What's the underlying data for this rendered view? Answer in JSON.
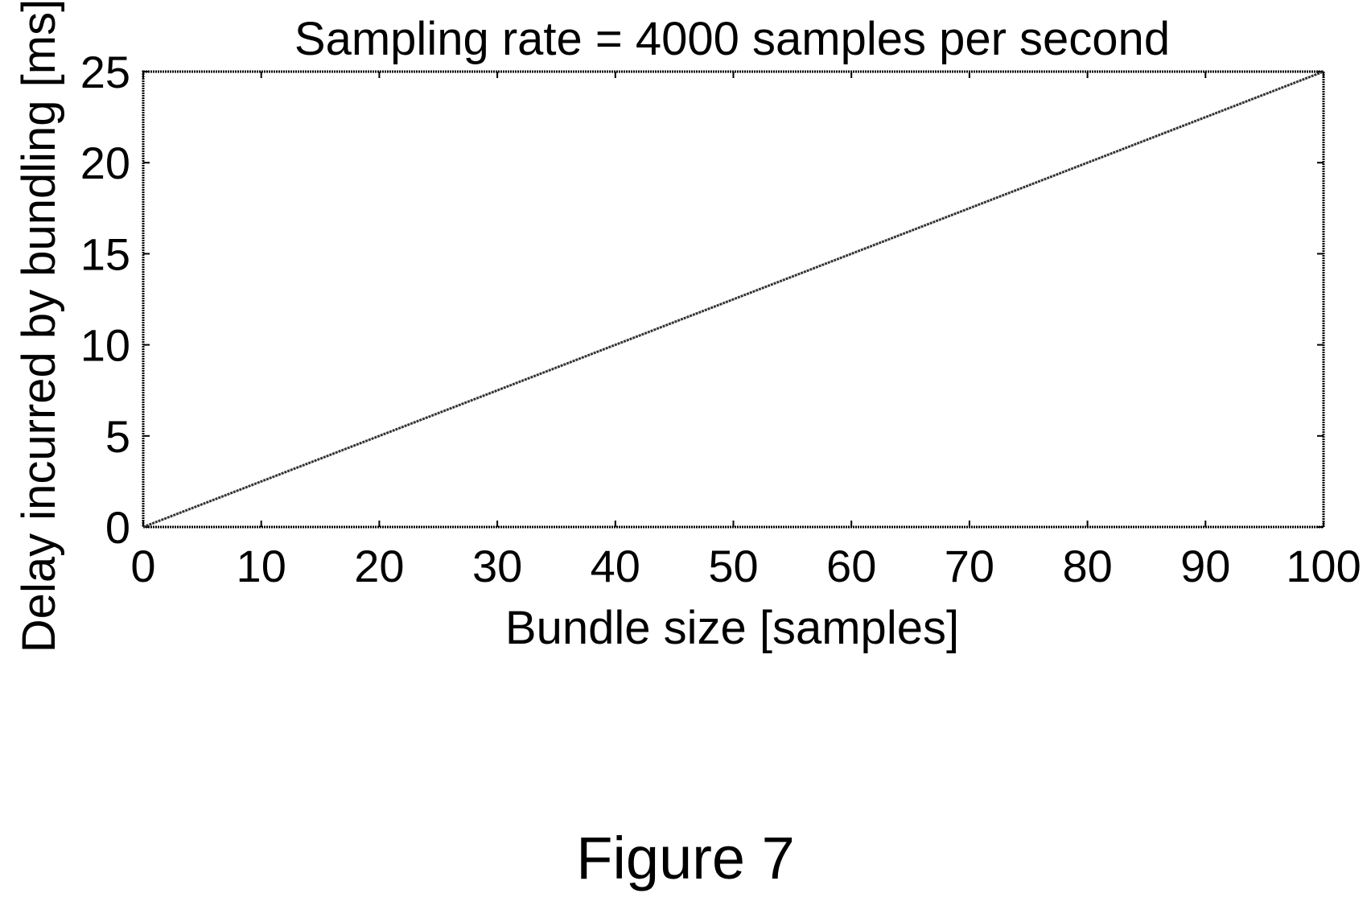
{
  "chart_data": {
    "type": "line",
    "title": "Sampling rate = 4000 samples per second",
    "xlabel": "Bundle size [samples]",
    "ylabel": "Delay incurred by bundling [ms]",
    "xlim": [
      0,
      100
    ],
    "ylim": [
      0,
      25
    ],
    "x_ticks": [
      "0",
      "10",
      "20",
      "30",
      "40",
      "50",
      "60",
      "70",
      "80",
      "90",
      "100"
    ],
    "y_ticks": [
      "0",
      "5",
      "10",
      "15",
      "20",
      "25"
    ],
    "grid": false,
    "legend": "none",
    "series": [
      {
        "x": [
          0,
          10,
          20,
          30,
          40,
          50,
          60,
          70,
          80,
          90,
          100
        ],
        "y": [
          0,
          2.5,
          5,
          7.5,
          10,
          12.5,
          15,
          17.5,
          20,
          22.5,
          25
        ]
      }
    ],
    "colors": {
      "line": "#333333",
      "axes": "#000000",
      "background": "#ffffff"
    }
  },
  "caption": "Figure 7"
}
